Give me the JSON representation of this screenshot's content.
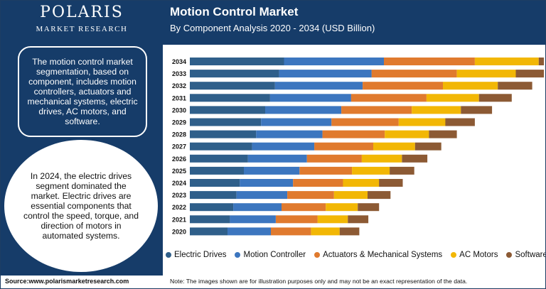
{
  "brand": {
    "name": "POLARIS",
    "tagline": "MARKET RESEARCH"
  },
  "header": {
    "title": "Motion Control Market",
    "subtitle": "By Component Analysis 2020 - 2034 (USD Billion)"
  },
  "panel": {
    "segmentation_text": "The motion control market segmentation, based on component, includes motion controllers, actuators and mechanical systems, electric drives, AC motors, and software.",
    "highlight_text": "In 2024, the electric drives segment dominated the market. Electric drives are essential components that control the speed, torque, and direction of motors in automated systems."
  },
  "footer": {
    "source": "Source:www.polarismarketresearch.com",
    "note": "Note: The images shown are for illustration purposes only and may not be an exact representation of the data."
  },
  "chart_data": {
    "type": "bar",
    "orientation": "horizontal",
    "stacked": true,
    "categories": [
      "2034",
      "2033",
      "2032",
      "2031",
      "2030",
      "2029",
      "2028",
      "2027",
      "2026",
      "2025",
      "2024",
      "2023",
      "2022",
      "2021",
      "2020"
    ],
    "series": [
      {
        "name": "Electric Drives",
        "color": "#2f5f8a",
        "values": [
          23.0,
          21.8,
          20.8,
          19.6,
          18.4,
          17.4,
          16.2,
          15.2,
          14.2,
          13.2,
          12.2,
          11.4,
          10.6,
          9.8,
          9.2
        ]
      },
      {
        "name": "Motion Controller",
        "color": "#3c76bf",
        "values": [
          24.4,
          22.6,
          21.4,
          19.8,
          18.6,
          17.2,
          16.2,
          15.2,
          14.4,
          13.6,
          13.0,
          12.4,
          11.8,
          11.2,
          10.6
        ]
      },
      {
        "name": "Actuators & Mechanical Systems",
        "color": "#e07a2e",
        "values": [
          22.2,
          20.8,
          19.6,
          18.4,
          17.2,
          16.4,
          15.2,
          14.4,
          13.4,
          12.8,
          12.2,
          11.4,
          10.8,
          10.2,
          9.8
        ]
      },
      {
        "name": "AC Motors",
        "color": "#f2b705",
        "values": [
          15.6,
          14.4,
          13.4,
          12.8,
          12.0,
          11.4,
          10.8,
          10.2,
          9.8,
          9.2,
          8.8,
          8.2,
          7.8,
          7.4,
          7.0
        ]
      },
      {
        "name": "Software",
        "color": "#8c5a34",
        "values": [
          9.0,
          8.8,
          8.4,
          8.0,
          7.6,
          7.2,
          6.8,
          6.4,
          6.2,
          6.0,
          5.8,
          5.6,
          5.2,
          5.0,
          4.8
        ]
      }
    ],
    "xlim": [
      0,
      100
    ],
    "grid": false,
    "legend_position": "bottom"
  }
}
